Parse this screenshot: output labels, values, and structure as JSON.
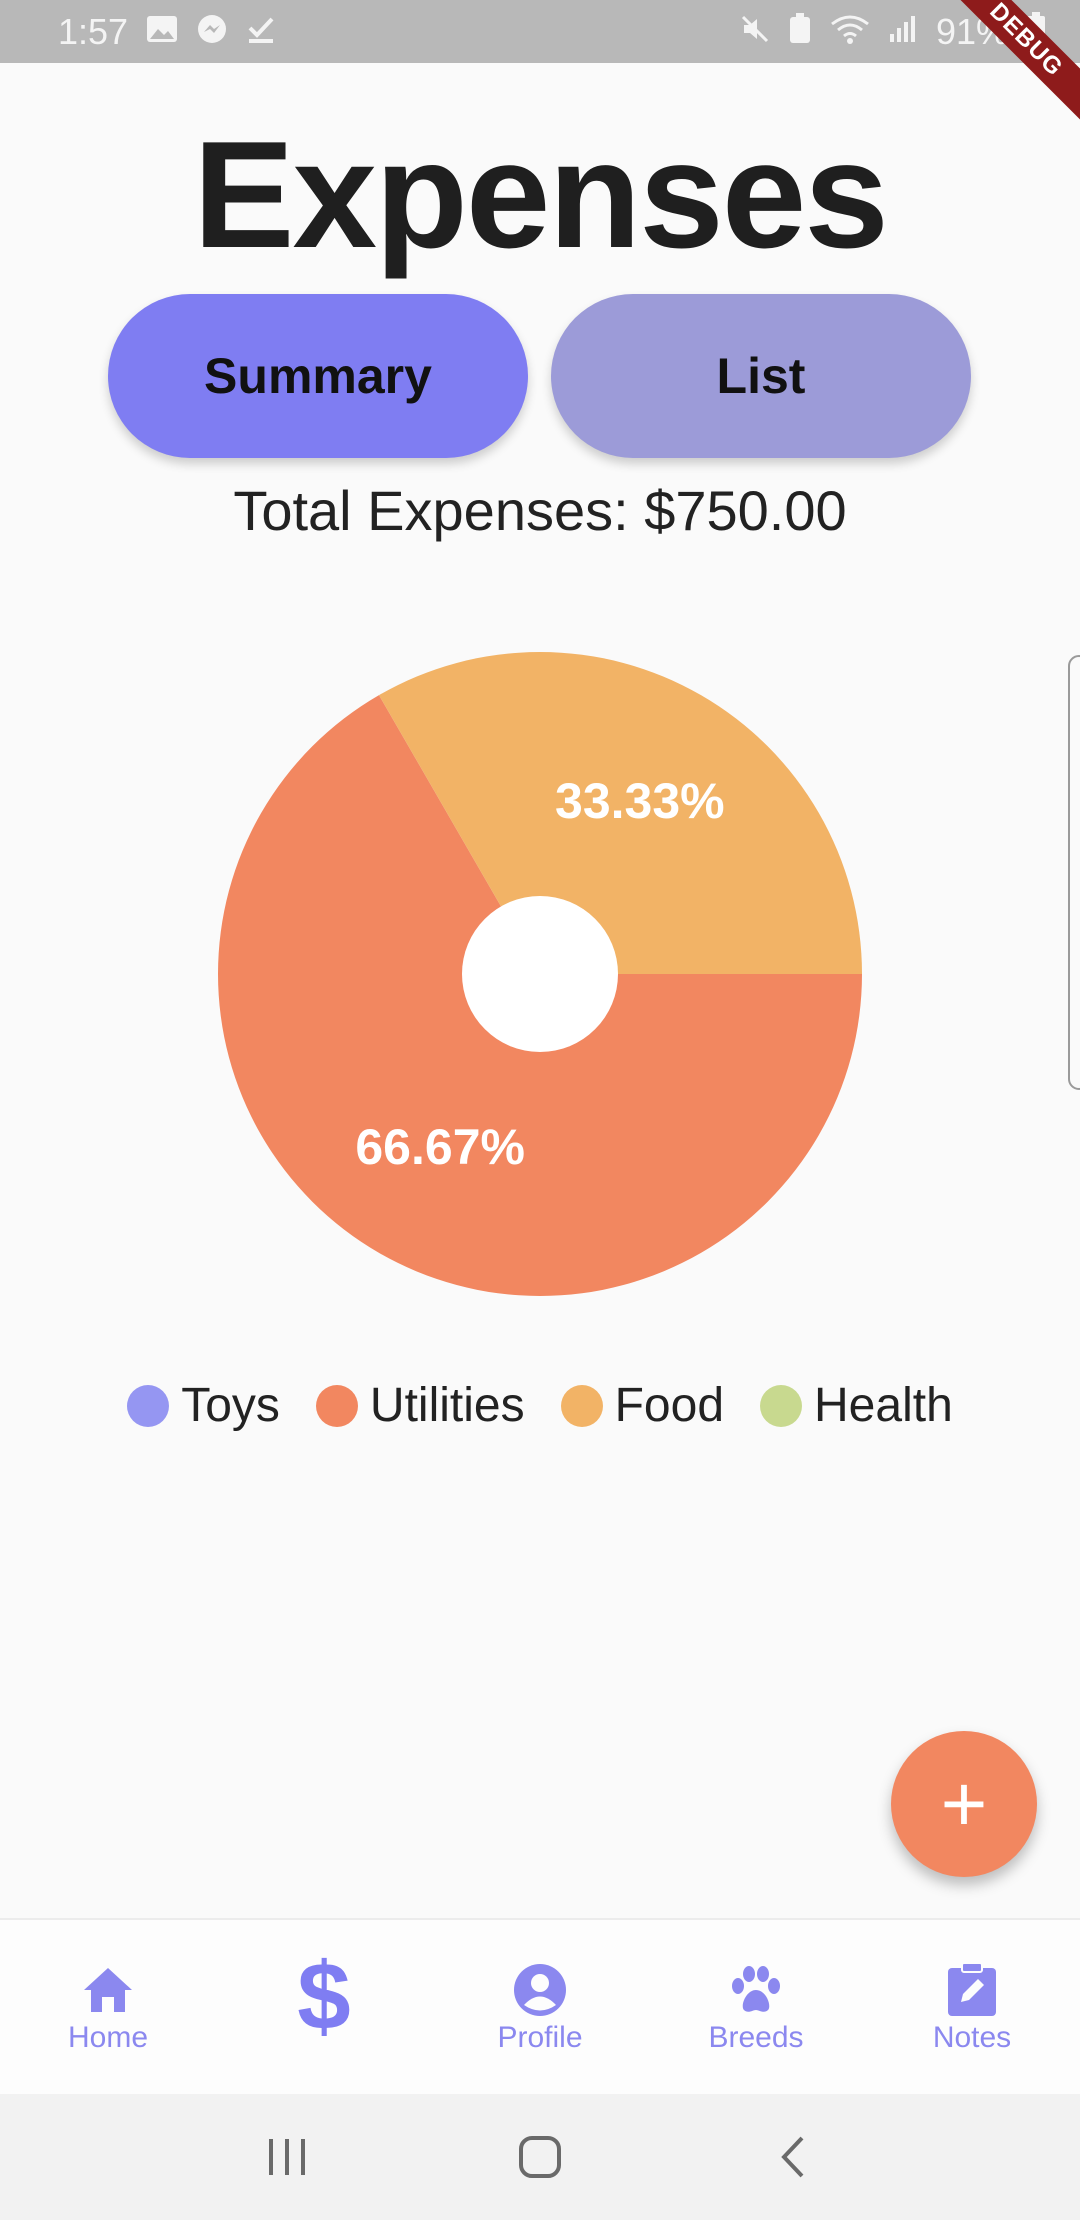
{
  "status_bar": {
    "time": "1:57",
    "battery": "91%"
  },
  "debug_label": "DEBUG",
  "title": "Expenses",
  "tabs": {
    "summary": "Summary",
    "list": "List"
  },
  "total_text": "Total Expenses: $750.00",
  "colors": {
    "toys": "#9596f2",
    "utilities": "#f28760",
    "food": "#f2b366",
    "health": "#c8d98f",
    "accent": "#7f7df2"
  },
  "chart_data": {
    "type": "pie",
    "title": "",
    "categories": [
      "Utilities",
      "Food"
    ],
    "values": [
      500,
      250
    ],
    "percent_labels": [
      "66.67%",
      "33.33%"
    ],
    "legend": [
      "Toys",
      "Utilities",
      "Food",
      "Health"
    ],
    "donut": true
  },
  "legend": [
    {
      "label": "Toys",
      "color": "#9596f2"
    },
    {
      "label": "Utilities",
      "color": "#f28760"
    },
    {
      "label": "Food",
      "color": "#f2b366"
    },
    {
      "label": "Health",
      "color": "#c8d98f"
    }
  ],
  "fab_label": "+",
  "bottom_nav": {
    "home": "Home",
    "expenses_icon": "$",
    "profile": "Profile",
    "breeds": "Breeds",
    "notes": "Notes"
  }
}
